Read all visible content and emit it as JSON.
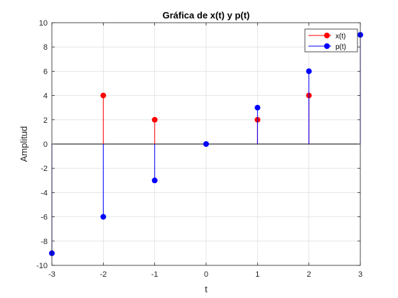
{
  "chart_data": {
    "type": "stem",
    "title": "Gráfica de x(t) y p(t)",
    "xlabel": "t",
    "ylabel": "Amplitud",
    "xlim": [
      -3,
      3
    ],
    "ylim": [
      -10,
      10
    ],
    "xticks": [
      -3,
      -2,
      -1,
      0,
      1,
      2,
      3
    ],
    "yticks": [
      -10,
      -8,
      -6,
      -4,
      -2,
      0,
      2,
      4,
      6,
      8,
      10
    ],
    "grid": true,
    "baseline": 0,
    "legend_position": "top-right",
    "series": [
      {
        "name": "x(t)",
        "color": "#ff0000",
        "x": [
          -2,
          -1,
          1,
          2
        ],
        "y": [
          4,
          2,
          2,
          4
        ]
      },
      {
        "name": "p(t)",
        "color": "#0000ff",
        "x": [
          -3,
          -2,
          -1,
          0,
          1,
          2,
          3
        ],
        "y": [
          -9,
          -6,
          -3,
          0,
          3,
          6,
          9
        ]
      }
    ]
  }
}
